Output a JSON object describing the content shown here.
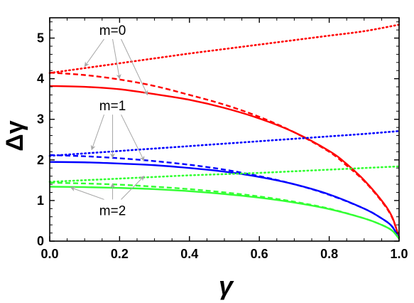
{
  "chart_data": {
    "type": "line",
    "xlabel": "γ",
    "ylabel": "Δγ",
    "xlim": [
      0,
      1
    ],
    "ylim": [
      0,
      5.5
    ],
    "xticks": [
      "0.0",
      "0.2",
      "0.4",
      "0.6",
      "0.8",
      "1.0"
    ],
    "yticks": [
      "0",
      "1",
      "2",
      "3",
      "4",
      "5"
    ],
    "grid": false,
    "series": [
      {
        "group": "m=0",
        "style": "dotted",
        "color": "#ff0000",
        "x": [
          0.0,
          0.1,
          0.2,
          0.3,
          0.4,
          0.5,
          0.6,
          0.7,
          0.8,
          0.9,
          1.0
        ],
        "y": [
          4.14,
          4.26,
          4.38,
          4.5,
          4.62,
          4.73,
          4.84,
          4.95,
          5.06,
          5.17,
          5.33
        ]
      },
      {
        "group": "m=0",
        "style": "dashed",
        "color": "#ff0000",
        "x": [
          0.0,
          0.1,
          0.2,
          0.3,
          0.4,
          0.5,
          0.6,
          0.7,
          0.8,
          0.85,
          0.9,
          0.95,
          0.98,
          1.0
        ],
        "y": [
          4.15,
          4.09,
          3.98,
          3.82,
          3.6,
          3.36,
          3.06,
          2.68,
          2.2,
          1.86,
          1.48,
          0.98,
          0.58,
          0.08
        ]
      },
      {
        "group": "m=0",
        "style": "solid",
        "color": "#ff0000",
        "x": [
          0.0,
          0.1,
          0.2,
          0.3,
          0.4,
          0.5,
          0.6,
          0.7,
          0.8,
          0.85,
          0.9,
          0.95,
          0.98,
          1.0
        ],
        "y": [
          3.82,
          3.8,
          3.74,
          3.62,
          3.48,
          3.28,
          3.02,
          2.68,
          2.22,
          1.9,
          1.5,
          1.0,
          0.6,
          0.08
        ]
      },
      {
        "group": "m=1",
        "style": "dotted",
        "color": "#0000ff",
        "x": [
          0.0,
          0.1,
          0.2,
          0.3,
          0.4,
          0.5,
          0.6,
          0.7,
          0.8,
          0.9,
          1.0
        ],
        "y": [
          2.1,
          2.16,
          2.22,
          2.28,
          2.34,
          2.4,
          2.46,
          2.52,
          2.58,
          2.64,
          2.71
        ]
      },
      {
        "group": "m=1",
        "style": "dashed",
        "color": "#0000ff",
        "x": [
          0.0,
          0.1,
          0.2,
          0.3,
          0.4,
          0.5,
          0.6,
          0.7,
          0.8,
          0.9,
          0.95,
          0.98,
          1.0
        ],
        "y": [
          2.12,
          2.09,
          2.04,
          1.97,
          1.88,
          1.76,
          1.6,
          1.4,
          1.14,
          0.8,
          0.56,
          0.36,
          0.06
        ]
      },
      {
        "group": "m=1",
        "style": "solid",
        "color": "#0000ff",
        "x": [
          0.0,
          0.1,
          0.2,
          0.3,
          0.4,
          0.5,
          0.6,
          0.7,
          0.8,
          0.9,
          0.95,
          0.98,
          1.0
        ],
        "y": [
          1.95,
          1.94,
          1.91,
          1.87,
          1.8,
          1.71,
          1.58,
          1.4,
          1.15,
          0.8,
          0.56,
          0.36,
          0.06
        ]
      },
      {
        "group": "m=2",
        "style": "dotted",
        "color": "#33ff33",
        "x": [
          0.0,
          0.1,
          0.2,
          0.3,
          0.4,
          0.5,
          0.6,
          0.7,
          0.8,
          0.9,
          1.0
        ],
        "y": [
          1.46,
          1.5,
          1.54,
          1.58,
          1.62,
          1.65,
          1.68,
          1.72,
          1.76,
          1.8,
          1.84
        ]
      },
      {
        "group": "m=2",
        "style": "dashed",
        "color": "#33ff33",
        "x": [
          0.0,
          0.1,
          0.2,
          0.3,
          0.4,
          0.5,
          0.6,
          0.7,
          0.8,
          0.9,
          0.95,
          0.98,
          1.0
        ],
        "y": [
          1.44,
          1.42,
          1.39,
          1.34,
          1.28,
          1.2,
          1.1,
          0.97,
          0.8,
          0.56,
          0.4,
          0.26,
          0.06
        ]
      },
      {
        "group": "m=2",
        "style": "solid",
        "color": "#33ff33",
        "x": [
          0.0,
          0.1,
          0.2,
          0.3,
          0.4,
          0.5,
          0.6,
          0.7,
          0.8,
          0.9,
          0.95,
          0.98,
          1.0
        ],
        "y": [
          1.34,
          1.33,
          1.31,
          1.28,
          1.23,
          1.16,
          1.07,
          0.95,
          0.79,
          0.56,
          0.4,
          0.26,
          0.06
        ]
      }
    ],
    "annotations": [
      {
        "text": "m=0",
        "label_at": [
          0.18,
          5.08
        ],
        "arrows_to": [
          [
            0.1,
            4.3
          ],
          [
            0.2,
            4.0
          ],
          [
            0.28,
            3.6
          ]
        ]
      },
      {
        "text": "m=1",
        "label_at": [
          0.18,
          3.22
        ],
        "arrows_to": [
          [
            0.12,
            2.25
          ],
          [
            0.18,
            2.05
          ],
          [
            0.27,
            1.98
          ]
        ]
      },
      {
        "text": "m=2",
        "label_at": [
          0.18,
          0.64
        ],
        "arrows_to": [
          [
            0.06,
            1.32
          ],
          [
            0.18,
            1.42
          ],
          [
            0.27,
            1.6
          ]
        ]
      }
    ]
  }
}
